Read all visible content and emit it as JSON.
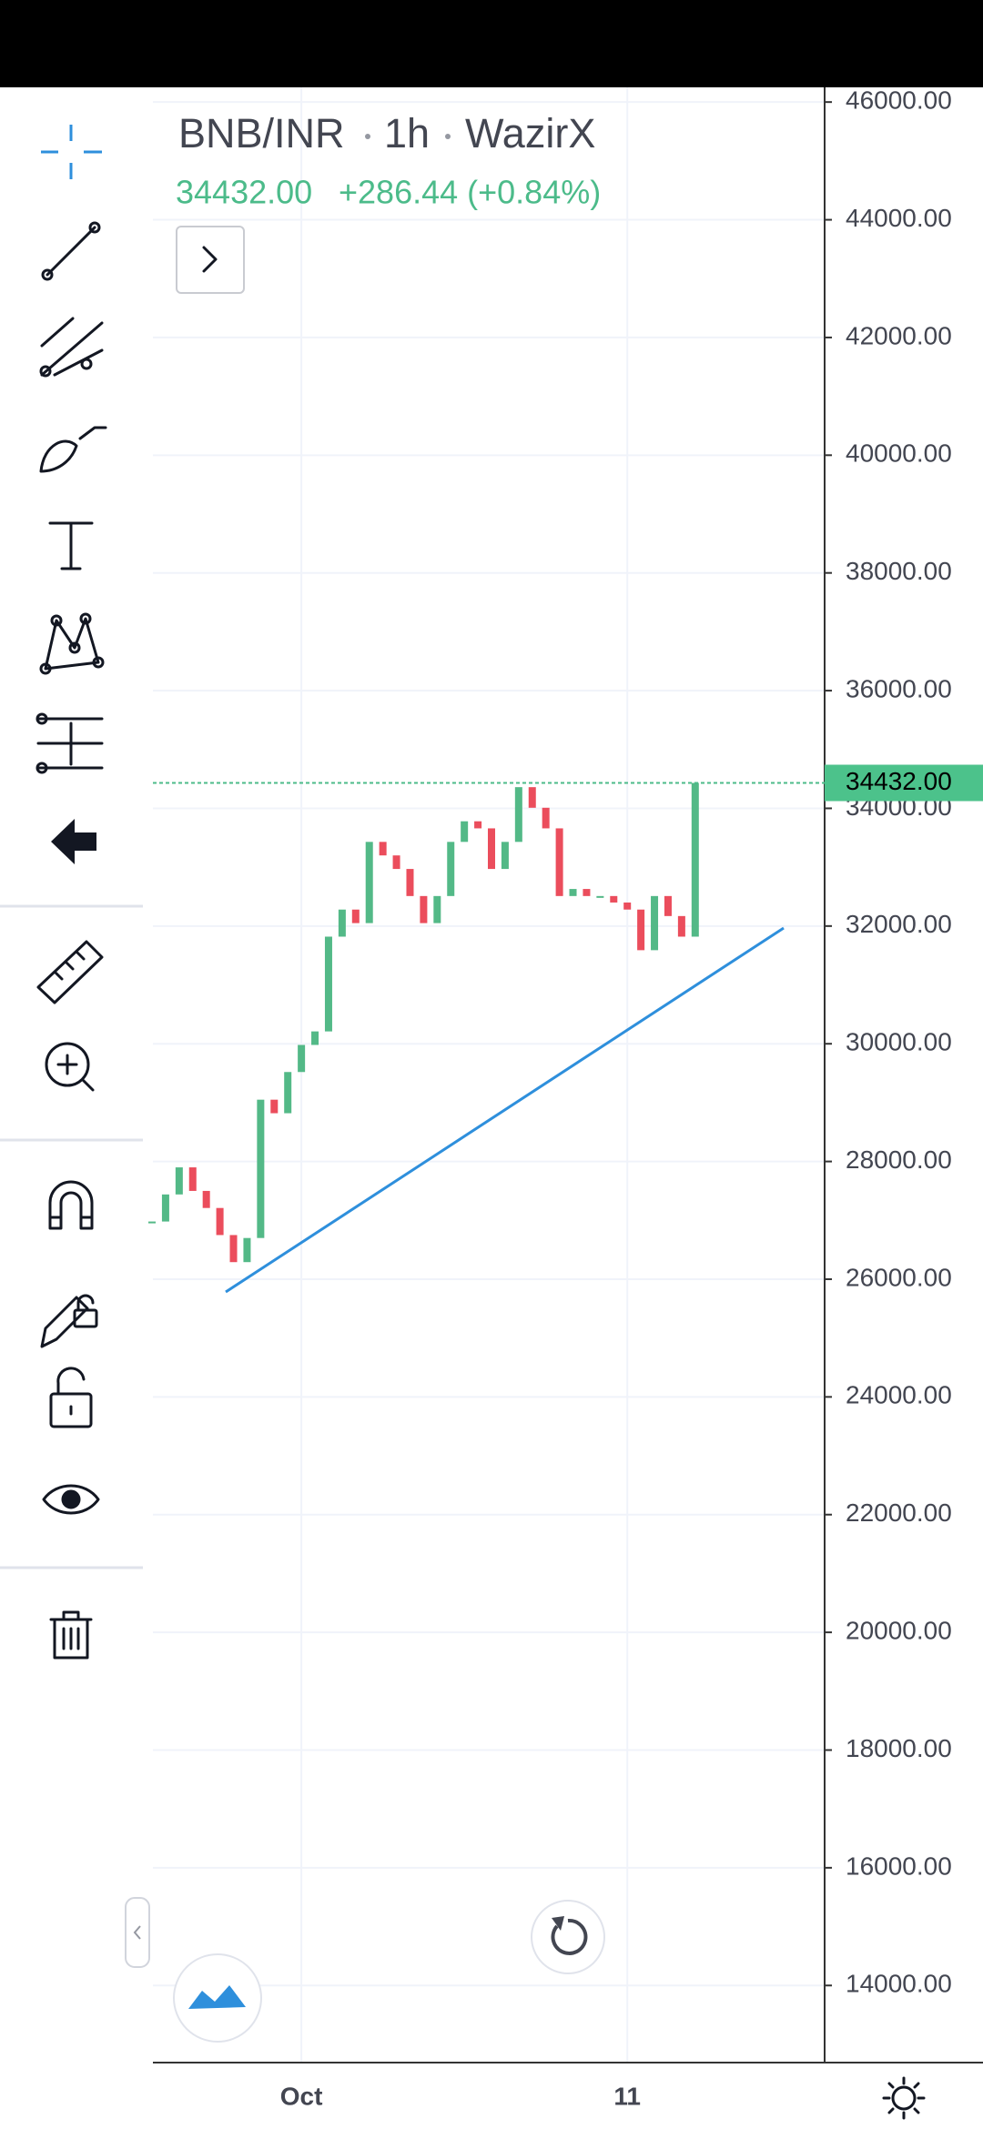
{
  "header": {
    "symbol": "BNB/INR",
    "interval": "1h",
    "exchange": "WazirX",
    "change": "+286.44 (+0.84%)"
  },
  "chart_data": {
    "type": "candlestick",
    "categories": [
      null,
      null,
      null,
      null,
      null,
      null,
      null,
      null,
      null,
      null,
      null,
      "Oct",
      null,
      null,
      null,
      null,
      null,
      null,
      null,
      null,
      null,
      null,
      null,
      null,
      null,
      null,
      null,
      null,
      null,
      null,
      null,
      null,
      null,
      null,
      null,
      "11",
      null,
      null,
      null,
      null,
      null
    ],
    "values": [
      26980,
      27440,
      27900,
      27500,
      27210,
      26750,
      26290,
      26700,
      29050,
      28820,
      29520,
      29980,
      30210,
      31820,
      32280,
      32050,
      33430,
      33200,
      32970,
      32510,
      32050,
      32510,
      33430,
      33780,
      33660,
      32970,
      33430,
      34360,
      34010,
      33660,
      32510,
      32630,
      32510,
      32510,
      32400,
      32280,
      31590,
      32510,
      32170,
      31820,
      34432
    ],
    "up_color": "#53b987",
    "down_color": "#eb4d5c",
    "last_price": {
      "value": 34432,
      "label": "34432.00"
    },
    "ylim": [
      12690,
      46250
    ],
    "yticks": [
      {
        "value": 46000,
        "label": "46000.00"
      },
      {
        "value": 44000,
        "label": "44000.00"
      },
      {
        "value": 42000,
        "label": "42000.00"
      },
      {
        "value": 40000,
        "label": "40000.00"
      },
      {
        "value": 38000,
        "label": "38000.00"
      },
      {
        "value": 36000,
        "label": "36000.00"
      },
      {
        "value": 34000,
        "label": "34000.00"
      },
      {
        "value": 32000,
        "label": "32000.00"
      },
      {
        "value": 30000,
        "label": "30000.00"
      },
      {
        "value": 28000,
        "label": "28000.00"
      },
      {
        "value": 26000,
        "label": "26000.00"
      },
      {
        "value": 24000,
        "label": "24000.00"
      },
      {
        "value": 22000,
        "label": "22000.00"
      },
      {
        "value": 20000,
        "label": "20000.00"
      },
      {
        "value": 18000,
        "label": "18000.00"
      },
      {
        "value": 16000,
        "label": "16000.00"
      },
      {
        "value": 14000,
        "label": "14000.00"
      }
    ],
    "grid": true
  }
}
